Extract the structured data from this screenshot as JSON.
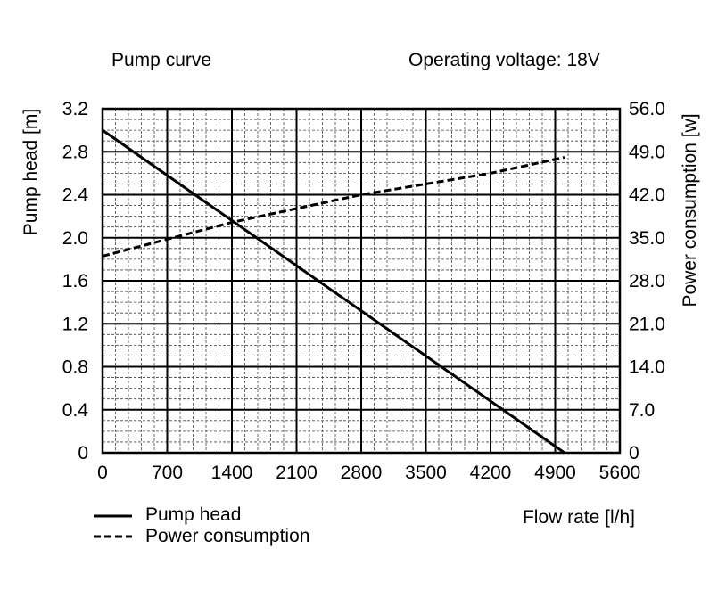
{
  "header": {
    "left": "Pump curve",
    "right": "Operating voltage: 18V"
  },
  "chart_data": {
    "type": "line",
    "title": "Pump curve",
    "subtitle": "Operating voltage: 18V",
    "xlabel": "Flow rate [l/h]",
    "ylabel_left": "Pump head [m]",
    "ylabel_right": "Power consumption [w]",
    "xlim": [
      0,
      5600
    ],
    "ylim_left": [
      0,
      3.2
    ],
    "ylim_right": [
      0,
      56.0
    ],
    "x_ticks": [
      "0",
      "700",
      "1400",
      "2100",
      "2800",
      "3500",
      "4200",
      "4900",
      "5600"
    ],
    "y_left_ticks": [
      "0",
      "0.4",
      "0.8",
      "1.2",
      "1.6",
      "2.0",
      "2.4",
      "2.8",
      "3.2"
    ],
    "y_right_ticks": [
      "0",
      "7.0",
      "14.0",
      "21.0",
      "28.0",
      "35.0",
      "42.0",
      "49.0",
      "56.0"
    ],
    "grid": true,
    "series": [
      {
        "name": "Pump head",
        "axis": "left",
        "style": "solid",
        "x": [
          0,
          5000
        ],
        "y": [
          3.0,
          0
        ]
      },
      {
        "name": "Power consumption",
        "axis": "right",
        "style": "dashed",
        "x": [
          0,
          1400,
          2800,
          4200,
          5000
        ],
        "y": [
          32.0,
          37.5,
          42.0,
          45.5,
          48.1
        ]
      }
    ]
  }
}
